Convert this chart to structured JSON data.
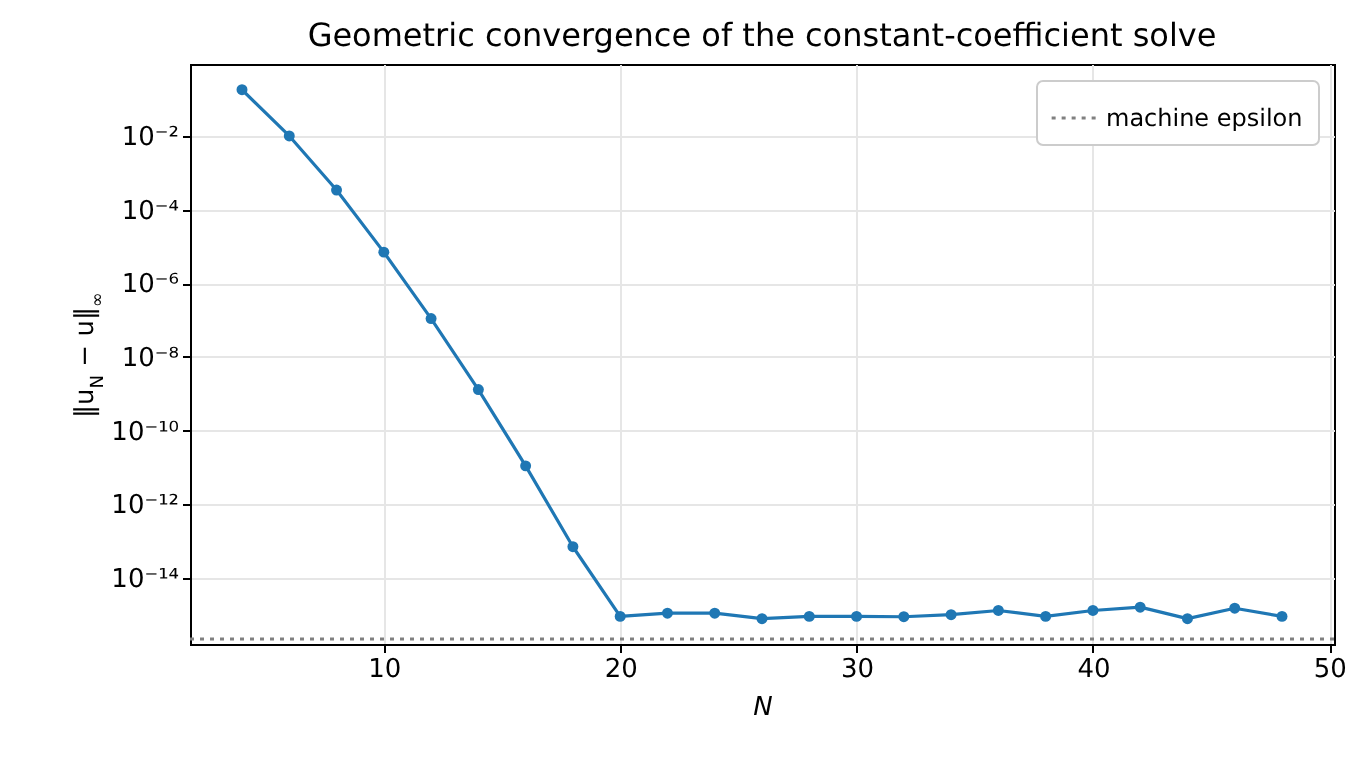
{
  "chart_data": {
    "type": "line",
    "title": "Geometric convergence of the constant-coefficient solve",
    "xlabel": "N",
    "ylabel": "‖u$_{N}$ − u‖$_{∞}$",
    "x": [
      4,
      6,
      8,
      10,
      12,
      14,
      16,
      18,
      20,
      22,
      24,
      26,
      28,
      30,
      32,
      34,
      36,
      38,
      40,
      42,
      44,
      46,
      48
    ],
    "series": [
      {
        "color": "#1f77b4",
        "values": [
          0.18,
          0.01,
          0.00034,
          7e-06,
          1.1e-07,
          1.3e-09,
          1.1e-11,
          7e-14,
          9e-16,
          1.1e-15,
          1.1e-15,
          7.8e-16,
          9e-16,
          9e-16,
          8.8e-16,
          1e-15,
          1.3e-15,
          9e-16,
          1.3e-15,
          1.6e-15,
          7.8e-16,
          1.5e-15,
          9e-16
        ]
      }
    ],
    "log": "y",
    "xlim": [
      1.8,
      50.2
    ],
    "xticks": [
      10,
      20,
      30,
      40,
      50
    ],
    "ylim": [
      1.6e-16,
      0.9
    ],
    "yticks": [
      {
        "value": 0.01,
        "label": "10⁻²"
      },
      {
        "value": 0.0001,
        "label": "10⁻⁴"
      },
      {
        "value": 1e-06,
        "label": "10⁻⁶"
      },
      {
        "value": 1e-08,
        "label": "10⁻⁸"
      },
      {
        "value": 1e-10,
        "label": "10⁻¹⁰"
      },
      {
        "value": 1e-12,
        "label": "10⁻¹²"
      },
      {
        "value": 1e-14,
        "label": "10⁻¹⁴"
      }
    ],
    "ref_lines": [
      {
        "axis": "y",
        "value": 2.2e-16,
        "label": "machine epsilon",
        "color": "#808080",
        "line_style": "dotted"
      }
    ],
    "grid": true,
    "legend": "top right",
    "marker": "circle",
    "line_style": "solid"
  }
}
